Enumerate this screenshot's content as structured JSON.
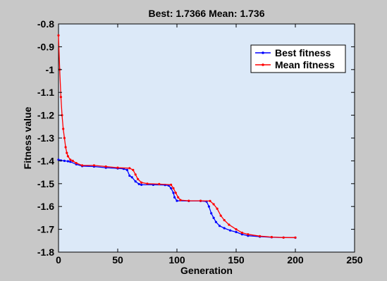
{
  "chart_data": {
    "type": "line",
    "title": "Best: 1.7366 Mean: 1.736",
    "xlabel": "Generation",
    "ylabel": "Fitness value",
    "xlim": [
      0,
      250
    ],
    "ylim": [
      -1.8,
      -0.8
    ],
    "xticks": [
      0,
      50,
      100,
      150,
      200,
      250
    ],
    "yticks": [
      -0.8,
      -0.9,
      -1,
      -1.1,
      -1.2,
      -1.3,
      -1.4,
      -1.5,
      -1.6,
      -1.7,
      -1.8
    ],
    "grid": false,
    "legend_position": "top-right",
    "colors": {
      "best": "#0000ff",
      "mean": "#ff0000",
      "plot_bg": "#dce9f8",
      "figure_bg": "#c8c8c8"
    },
    "series": [
      {
        "name": "Best fitness",
        "key": "best",
        "points": [
          [
            0,
            -1.395
          ],
          [
            2,
            -1.398
          ],
          [
            5,
            -1.4
          ],
          [
            8,
            -1.402
          ],
          [
            10,
            -1.404
          ],
          [
            15,
            -1.415
          ],
          [
            20,
            -1.423
          ],
          [
            30,
            -1.425
          ],
          [
            40,
            -1.43
          ],
          [
            50,
            -1.433
          ],
          [
            55,
            -1.435
          ],
          [
            58,
            -1.44
          ],
          [
            60,
            -1.465
          ],
          [
            62,
            -1.472
          ],
          [
            65,
            -1.49
          ],
          [
            68,
            -1.502
          ],
          [
            70,
            -1.505
          ],
          [
            80,
            -1.505
          ],
          [
            90,
            -1.506
          ],
          [
            93,
            -1.508
          ],
          [
            95,
            -1.52
          ],
          [
            97,
            -1.54
          ],
          [
            98,
            -1.56
          ],
          [
            100,
            -1.575
          ],
          [
            110,
            -1.576
          ],
          [
            120,
            -1.576
          ],
          [
            125,
            -1.578
          ],
          [
            127,
            -1.6
          ],
          [
            129,
            -1.63
          ],
          [
            131,
            -1.65
          ],
          [
            133,
            -1.668
          ],
          [
            136,
            -1.685
          ],
          [
            140,
            -1.695
          ],
          [
            145,
            -1.705
          ],
          [
            150,
            -1.712
          ],
          [
            155,
            -1.722
          ],
          [
            160,
            -1.728
          ],
          [
            170,
            -1.732
          ],
          [
            180,
            -1.735
          ],
          [
            190,
            -1.736
          ],
          [
            200,
            -1.7366
          ]
        ]
      },
      {
        "name": "Mean fitness",
        "key": "mean",
        "points": [
          [
            0,
            -0.85
          ],
          [
            1,
            -1.0
          ],
          [
            2,
            -1.12
          ],
          [
            3,
            -1.2
          ],
          [
            4,
            -1.26
          ],
          [
            5,
            -1.3
          ],
          [
            6,
            -1.34
          ],
          [
            7,
            -1.365
          ],
          [
            8,
            -1.38
          ],
          [
            10,
            -1.395
          ],
          [
            12,
            -1.4
          ],
          [
            15,
            -1.41
          ],
          [
            20,
            -1.42
          ],
          [
            30,
            -1.42
          ],
          [
            40,
            -1.425
          ],
          [
            50,
            -1.43
          ],
          [
            60,
            -1.432
          ],
          [
            63,
            -1.44
          ],
          [
            65,
            -1.46
          ],
          [
            67,
            -1.48
          ],
          [
            70,
            -1.495
          ],
          [
            75,
            -1.5
          ],
          [
            85,
            -1.502
          ],
          [
            95,
            -1.505
          ],
          [
            97,
            -1.52
          ],
          [
            99,
            -1.54
          ],
          [
            101,
            -1.56
          ],
          [
            103,
            -1.572
          ],
          [
            110,
            -1.575
          ],
          [
            120,
            -1.575
          ],
          [
            128,
            -1.576
          ],
          [
            131,
            -1.59
          ],
          [
            134,
            -1.61
          ],
          [
            137,
            -1.64
          ],
          [
            140,
            -1.66
          ],
          [
            144,
            -1.68
          ],
          [
            150,
            -1.7
          ],
          [
            155,
            -1.715
          ],
          [
            160,
            -1.722
          ],
          [
            170,
            -1.73
          ],
          [
            180,
            -1.734
          ],
          [
            190,
            -1.736
          ],
          [
            200,
            -1.736
          ]
        ]
      }
    ]
  }
}
